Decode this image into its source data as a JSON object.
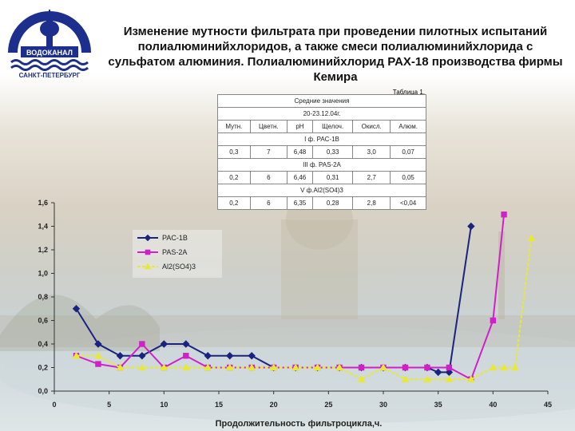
{
  "logo": {
    "name": "ВОДОКАНАЛ",
    "city": "САНКТ-ПЕТЕРБУРГ"
  },
  "title": "Изменение мутности фильтрата при проведении пилотных испытаний полиалюминийхлоридов, а также смеси полиалюминийхлорида с сульфатом алюминия. Полиалюминийхлорид PAX-18 производства фирмы Кемира",
  "table": {
    "caption": "Таблица 1.",
    "header": "Средние значения",
    "dates": "20-23.12.04г.",
    "columns": [
      "Мутн.",
      "Цветн.",
      "pH",
      "Щелоч.",
      "Окисл.",
      "Алюм."
    ],
    "groups": [
      {
        "label": "I ф. PAC-1B",
        "values": [
          "0,3",
          "7",
          "6,48",
          "0,33",
          "3,0",
          "0,07"
        ]
      },
      {
        "label": "III ф. PAS-2A",
        "values": [
          "0,2",
          "6",
          "6,46",
          "0,31",
          "2,7",
          "0,05"
        ]
      },
      {
        "label": "V ф.Al2(SO4)3",
        "values": [
          "0,2",
          "6",
          "6,35",
          "0,28",
          "2,8",
          "<0,04"
        ]
      }
    ]
  },
  "chart_data": {
    "type": "line",
    "title": "",
    "xlabel": "Продолжительность фильтроцикла,ч.",
    "ylabel": "",
    "xlim": [
      0,
      45
    ],
    "ylim": [
      0,
      1.6
    ],
    "x_ticks": [
      "0",
      "5",
      "10",
      "15",
      "20",
      "25",
      "30",
      "35",
      "40",
      "45"
    ],
    "y_ticks": [
      "0,0",
      "0,2",
      "0,4",
      "0,6",
      "0,8",
      "1,0",
      "1,2",
      "1,4",
      "1,6"
    ],
    "grid": false,
    "legend_position": "left-middle",
    "series": [
      {
        "name": "PAC-1B",
        "color": "#1a237e",
        "marker": "diamond",
        "points": [
          [
            2,
            0.7
          ],
          [
            4,
            0.4
          ],
          [
            6,
            0.3
          ],
          [
            8,
            0.3
          ],
          [
            10,
            0.4
          ],
          [
            12,
            0.4
          ],
          [
            14,
            0.3
          ],
          [
            16,
            0.3
          ],
          [
            18,
            0.3
          ],
          [
            20,
            0.2
          ],
          [
            22,
            0.2
          ],
          [
            24,
            0.2
          ],
          [
            26,
            0.2
          ],
          [
            28,
            0.2
          ],
          [
            30,
            0.2
          ],
          [
            32,
            0.2
          ],
          [
            34,
            0.2
          ],
          [
            35,
            0.16
          ],
          [
            36,
            0.16
          ],
          [
            38,
            1.4
          ]
        ]
      },
      {
        "name": "PAS-2A",
        "color": "#d020c8",
        "marker": "square",
        "points": [
          [
            2,
            0.3
          ],
          [
            4,
            0.23
          ],
          [
            6,
            0.2
          ],
          [
            8,
            0.4
          ],
          [
            10,
            0.2
          ],
          [
            12,
            0.3
          ],
          [
            14,
            0.2
          ],
          [
            16,
            0.2
          ],
          [
            18,
            0.2
          ],
          [
            20,
            0.2
          ],
          [
            22,
            0.2
          ],
          [
            24,
            0.2
          ],
          [
            26,
            0.2
          ],
          [
            28,
            0.2
          ],
          [
            30,
            0.2
          ],
          [
            32,
            0.2
          ],
          [
            34,
            0.2
          ],
          [
            36,
            0.2
          ],
          [
            38,
            0.1
          ],
          [
            40,
            0.6
          ],
          [
            41,
            1.5
          ]
        ]
      },
      {
        "name": "Al2(SO4)3",
        "color": "#e8e838",
        "marker": "triangle",
        "points": [
          [
            2,
            0.3
          ],
          [
            4,
            0.3
          ],
          [
            6,
            0.2
          ],
          [
            8,
            0.2
          ],
          [
            10,
            0.2
          ],
          [
            12,
            0.2
          ],
          [
            14,
            0.2
          ],
          [
            16,
            0.2
          ],
          [
            18,
            0.2
          ],
          [
            20,
            0.2
          ],
          [
            22,
            0.2
          ],
          [
            24,
            0.2
          ],
          [
            26,
            0.2
          ],
          [
            28,
            0.1
          ],
          [
            30,
            0.2
          ],
          [
            32,
            0.1
          ],
          [
            34,
            0.1
          ],
          [
            36,
            0.1
          ],
          [
            38,
            0.1
          ],
          [
            40,
            0.2
          ],
          [
            41,
            0.2
          ],
          [
            42,
            0.2
          ],
          [
            43.5,
            1.3
          ]
        ]
      }
    ]
  }
}
